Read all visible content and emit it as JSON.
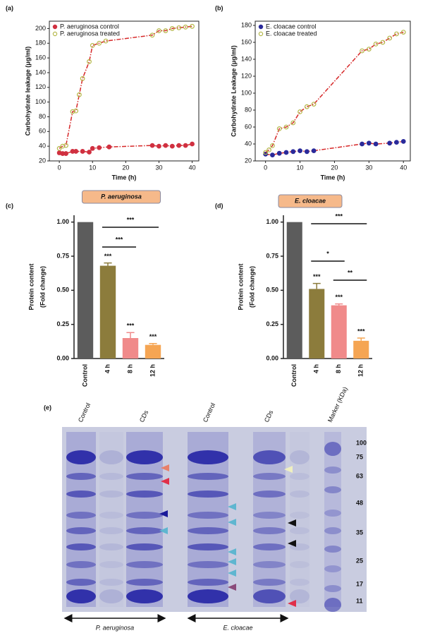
{
  "chart_data": [
    {
      "type": "scatter",
      "label": "(a)",
      "xlabel": "Time (h)",
      "ylabel": "Carbohydrate leakage (μg/ml)",
      "xlim": [
        -3,
        42
      ],
      "ylim": [
        20,
        210
      ],
      "xticks": [
        0,
        10,
        20,
        30,
        40
      ],
      "yticks": [
        20,
        40,
        60,
        80,
        100,
        120,
        140,
        160,
        180,
        200
      ],
      "legend": "upper left",
      "fit_color": "#d62728",
      "series": [
        {
          "name": "P. aeruginosa control",
          "color": "#d03040",
          "marker": "filled",
          "x": [
            0,
            1,
            2,
            4,
            5,
            7,
            9,
            10,
            12,
            15,
            28,
            30,
            32,
            34,
            36,
            38,
            40
          ],
          "values": [
            31,
            30,
            30,
            33,
            33,
            33,
            32,
            37,
            38,
            39,
            41,
            40,
            41,
            40,
            41,
            41,
            43
          ]
        },
        {
          "name": "P. aeruginosa treated",
          "color": "#b5b84a",
          "marker": "open",
          "x": [
            0,
            1,
            2,
            4,
            5,
            6,
            7,
            9,
            10,
            12,
            14,
            28,
            30,
            32,
            34,
            36,
            38,
            40
          ],
          "values": [
            37,
            40,
            41,
            87,
            88,
            110,
            132,
            155,
            177,
            180,
            183,
            191,
            197,
            197,
            200,
            201,
            202,
            203
          ]
        }
      ]
    },
    {
      "type": "scatter",
      "label": "(b)",
      "xlabel": "Time (h)",
      "ylabel": "Carbohydrate Leakage (μg/ml)",
      "xlim": [
        -3,
        42
      ],
      "ylim": [
        20,
        185
      ],
      "xticks": [
        0,
        10,
        20,
        30,
        40
      ],
      "yticks": [
        20,
        40,
        60,
        80,
        100,
        120,
        140,
        160,
        180
      ],
      "legend": "upper left",
      "fit_color": "#d62728",
      "series": [
        {
          "name": "E. cloacae control",
          "color": "#2a2a9a",
          "marker": "filled",
          "x": [
            0,
            2,
            4,
            6,
            8,
            10,
            12,
            14,
            28,
            30,
            32,
            36,
            38,
            40
          ],
          "values": [
            28,
            27,
            29,
            30,
            31,
            32,
            31,
            32,
            40,
            41,
            40,
            41,
            42,
            43
          ]
        },
        {
          "name": "E. cloacae treated",
          "color": "#b5b84a",
          "marker": "open",
          "x": [
            0,
            1,
            2,
            4,
            6,
            8,
            10,
            12,
            14,
            28,
            30,
            32,
            34,
            36,
            38,
            40
          ],
          "values": [
            30,
            33,
            38,
            58,
            60,
            65,
            78,
            84,
            87,
            150,
            152,
            158,
            160,
            165,
            170,
            172
          ]
        }
      ]
    },
    {
      "type": "bar",
      "label": "(c)",
      "title": "P. aeruginosa",
      "ylabel": [
        "Protein content",
        "(Fold change)"
      ],
      "categories": [
        "Control",
        "4 h",
        "8 h",
        "12 h"
      ],
      "values": [
        1.0,
        0.68,
        0.15,
        0.1
      ],
      "errors": [
        0,
        0.02,
        0.04,
        0.01
      ],
      "colors": [
        "#5c5c5c",
        "#8c7c3c",
        "#f08a8a",
        "#f5a553"
      ],
      "bar_labels": [
        null,
        "***",
        "***",
        "***"
      ],
      "brackets": [
        {
          "from": "4 h",
          "to": "12 h",
          "label": "***"
        },
        {
          "from": "4 h",
          "to": "8 h",
          "label": "***"
        }
      ],
      "ylim": [
        0,
        1.05
      ],
      "yticks": [
        {
          "value": 0,
          "label": "0.00"
        },
        {
          "value": 0.25,
          "label": "0.25"
        },
        {
          "value": 0.5,
          "label": "0.50"
        },
        {
          "value": 0.75,
          "label": "0.75"
        },
        {
          "value": 1,
          "label": "1.00"
        }
      ]
    },
    {
      "type": "bar",
      "label": "(d)",
      "title": "E. cloacae",
      "ylabel": [
        "Protein content",
        "(Fold change)"
      ],
      "categories": [
        "Control",
        "4 h",
        "8 h",
        "12 h"
      ],
      "values": [
        1.0,
        0.51,
        0.39,
        0.13
      ],
      "errors": [
        0,
        0.04,
        0.01,
        0.02
      ],
      "colors": [
        "#5c5c5c",
        "#8c7c3c",
        "#f08a8a",
        "#f5a553"
      ],
      "bar_labels": [
        null,
        "***",
        "***",
        "***"
      ],
      "brackets": [
        {
          "from": "4 h",
          "to": "12 h",
          "label": "***"
        },
        {
          "from": "4 h",
          "to": "8 h",
          "label": "*"
        },
        {
          "from": "8 h",
          "to": "12 h",
          "label": "**"
        }
      ],
      "ylim": [
        0,
        1.05
      ],
      "yticks": [
        {
          "value": 0,
          "label": "0.00"
        },
        {
          "value": 0.25,
          "label": "0.25"
        },
        {
          "value": 0.5,
          "label": "0.50"
        },
        {
          "value": 0.75,
          "label": "0.75"
        },
        {
          "value": 1,
          "label": "1.00"
        }
      ]
    }
  ],
  "gel": {
    "label": "(e)",
    "lanes": [
      "Control",
      "CDs",
      "Control",
      "CDs",
      "Marker (KDa)"
    ],
    "marker_sizes": [
      "100",
      "75",
      "63",
      "48",
      "35",
      "25",
      "17",
      "11"
    ],
    "groups": [
      "P. aeruginosa",
      "E. cloacae"
    ]
  }
}
